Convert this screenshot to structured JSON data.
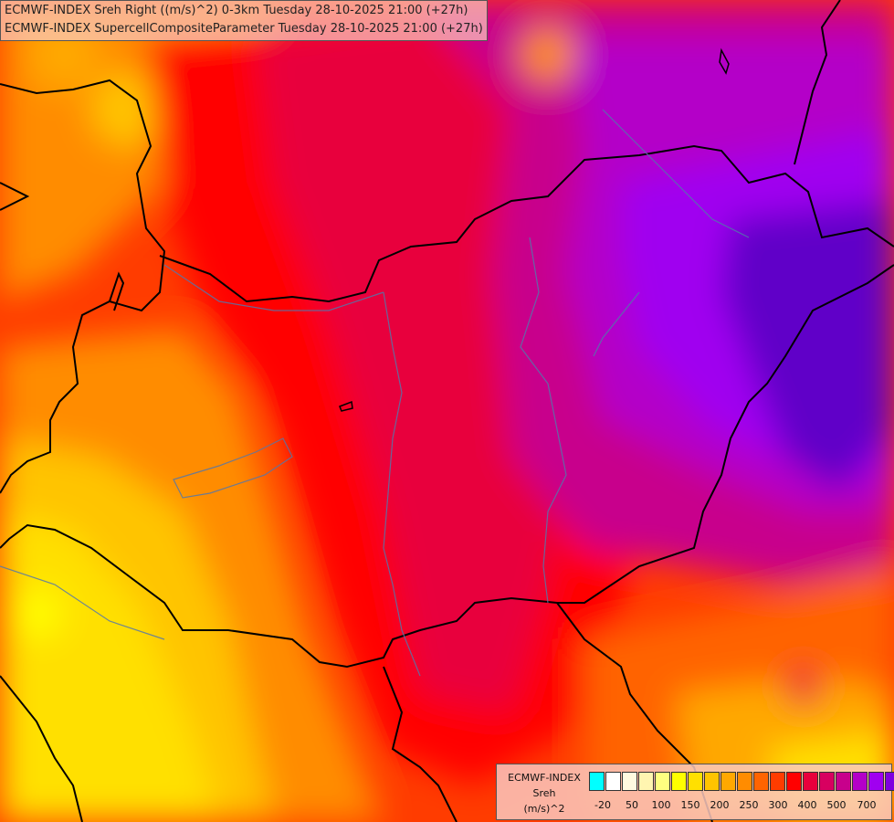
{
  "title": {
    "line1": "ECMWF-INDEX Sreh Right ((m/s)^2) 0-3km Tuesday 28-10-2025 21:00 (+27h)",
    "line2": "ECMWF-INDEX SupercellCompositeParameter Tuesday 28-10-2025 21:00 (+27h)"
  },
  "legend": {
    "line1": "ECMWF-INDEX",
    "line2": "Sreh",
    "line3": "(m/s)^2",
    "colors": [
      "#00ffff",
      "#ffffff",
      "#fffae0",
      "#fff5b0",
      "#ffff80",
      "#ffff00",
      "#ffe000",
      "#ffc400",
      "#ffa800",
      "#ff8c00",
      "#ff6400",
      "#ff3c00",
      "#ff0000",
      "#e8003c",
      "#d80060",
      "#c8008c",
      "#b400c8",
      "#a000f0",
      "#8000e0",
      "#6000c8",
      "#4000a0",
      "#000080"
    ],
    "ticks": [
      "-20",
      "50",
      "100",
      "150",
      "200",
      "250",
      "300",
      "400",
      "500",
      "700"
    ]
  }
}
